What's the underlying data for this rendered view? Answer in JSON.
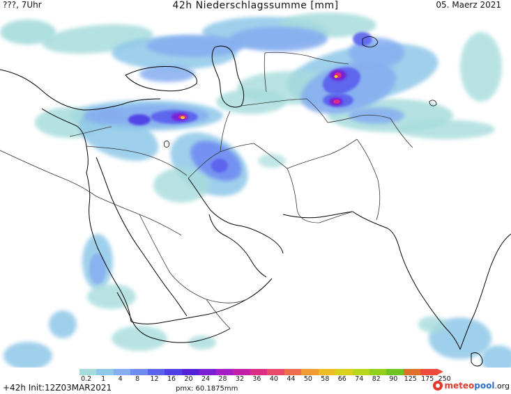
{
  "header": {
    "left_label": "???, 7Uhr",
    "title": "42h Niederschlagssumme [mm]",
    "date": "05. Maerz 2021"
  },
  "footer": {
    "init": "+42h Init:12Z03MAR2021",
    "pmx": "pmx: 60.1875mm",
    "logo_part1": "meteo",
    "logo_part2": "pool",
    "logo_part3": ".org"
  },
  "legend": {
    "ticks": [
      "0.2",
      "1",
      "4",
      "8",
      "12",
      "16",
      "20",
      "24",
      "28",
      "32",
      "36",
      "40",
      "44",
      "50",
      "58",
      "66",
      "74",
      "82",
      "90",
      "125",
      "175",
      "250"
    ],
    "colors": [
      "#a7dcdc",
      "#8fc8e8",
      "#86aef0",
      "#6f8cf2",
      "#5b63ee",
      "#4f3fe6",
      "#5423d8",
      "#7a1fd4",
      "#a41ec6",
      "#c41fa8",
      "#db2d86",
      "#e84a6a",
      "#ef6e4e",
      "#f29a34",
      "#eebc24",
      "#d8d21e",
      "#b8d71c",
      "#93cf1e",
      "#6fc424",
      "#e0702a",
      "#f04a3a"
    ]
  },
  "map": {
    "precip_colors": {
      "light": "#a7dcdc",
      "light2": "#8fc8e8",
      "moderate": "#86aef0",
      "moderate2": "#6f8cf2",
      "heavy": "#5b63ee",
      "heavy2": "#4f3fe6",
      "intense": "#7a1fd4",
      "extreme": "#db2d86",
      "peak": "#f0d020"
    },
    "coast_color": "#000000",
    "border_color": "#333333"
  }
}
